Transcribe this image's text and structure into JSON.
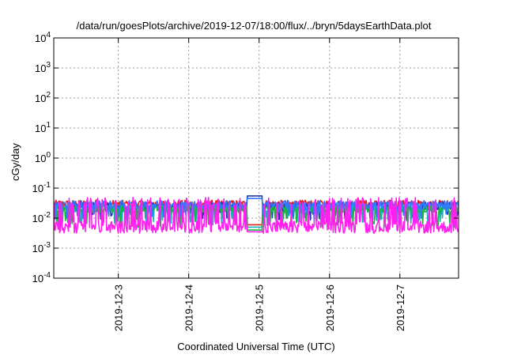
{
  "chart_data": {
    "type": "line",
    "title": "/data/run/goesPlots/archive/2019-12-07/18:00/flux/../bryn/5daysEarthData.plot",
    "xlabel": "Coordinated Universal Time (UTC)",
    "ylabel": "cGy/day",
    "yscale": "log",
    "ylim": [
      0.0001,
      10000
    ],
    "xlim": [
      "2019-12-02T02:00",
      "2019-12-07T20:00"
    ],
    "x_ticks": [
      {
        "label": "2019-12-3",
        "value": "2019-12-03"
      },
      {
        "label": "2019-12-4",
        "value": "2019-12-04"
      },
      {
        "label": "2019-12-5",
        "value": "2019-12-05"
      },
      {
        "label": "2019-12-6",
        "value": "2019-12-06"
      },
      {
        "label": "2019-12-7",
        "value": "2019-12-07"
      }
    ],
    "y_ticks": [
      {
        "mantissa": "10",
        "exponent": "-4",
        "value": 0.0001
      },
      {
        "mantissa": "10",
        "exponent": "-3",
        "value": 0.001
      },
      {
        "mantissa": "10",
        "exponent": "-2",
        "value": 0.01
      },
      {
        "mantissa": "10",
        "exponent": "-1",
        "value": 0.1
      },
      {
        "mantissa": "10",
        "exponent": "0",
        "value": 1
      },
      {
        "mantissa": "10",
        "exponent": "1",
        "value": 10
      },
      {
        "mantissa": "10",
        "exponent": "2",
        "value": 100
      },
      {
        "mantissa": "10",
        "exponent": "3",
        "value": 1000
      },
      {
        "mantissa": "10",
        "exponent": "4",
        "value": 10000
      }
    ],
    "grid": true,
    "data_gap": {
      "start": "2019-12-04T20:00",
      "end": "2019-12-05T01:00"
    },
    "series": [
      {
        "color": "#e8201c",
        "base": 0.03,
        "noise": 0.12,
        "gap_value": 0.006,
        "spike_low": 0.03,
        "spike_prob": 0.0
      },
      {
        "color": "#1f3aa8",
        "base": 0.025,
        "noise": 0.14,
        "gap_value": 0.055,
        "spike_low": 0.012,
        "spike_prob": 0.12
      },
      {
        "color": "#17b3b8",
        "base": 0.022,
        "noise": 0.14,
        "gap_value": 0.005,
        "spike_low": 0.008,
        "spike_prob": 0.15
      },
      {
        "color": "#15b83b",
        "base": 0.02,
        "noise": 0.12,
        "gap_value": 0.004,
        "spike_low": 0.007,
        "spike_prob": 0.12
      },
      {
        "color": "#2f78ff",
        "base": 0.028,
        "noise": 0.13,
        "gap_value": 0.045,
        "spike_low": 0.012,
        "spike_prob": 0.12
      },
      {
        "color": "#ff20ee",
        "base": 0.005,
        "noise": 0.2,
        "gap_value": 0.0035,
        "spike_high": 0.035,
        "spike_prob": 0.22
      }
    ]
  }
}
